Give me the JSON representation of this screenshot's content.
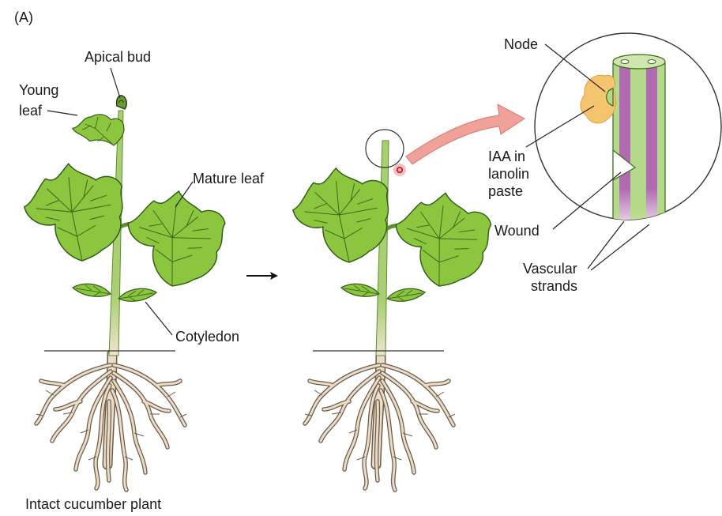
{
  "panel_label": "(A)",
  "caption": "Intact cucumber plant",
  "labels": {
    "apical_bud": "Apical bud",
    "young_leaf_line1": "Young",
    "young_leaf_line2": "leaf",
    "mature_leaf": "Mature leaf",
    "cotyledon": "Cotyledon",
    "node": "Node",
    "iaa_line1": "IAA in",
    "iaa_line2": "lanolin",
    "iaa_line3": "paste",
    "wound": "Wound",
    "vascular_line1": "Vascular",
    "vascular_line2": "strands"
  },
  "colors": {
    "leaf_fill": "#8cc63f",
    "leaf_vein": "#3c6b1c",
    "stem": "#a8cf72",
    "root": "#e9dccb",
    "vascular": "#b06ab0",
    "paste": "#f5c46e",
    "arrow": "#f0a29a"
  }
}
